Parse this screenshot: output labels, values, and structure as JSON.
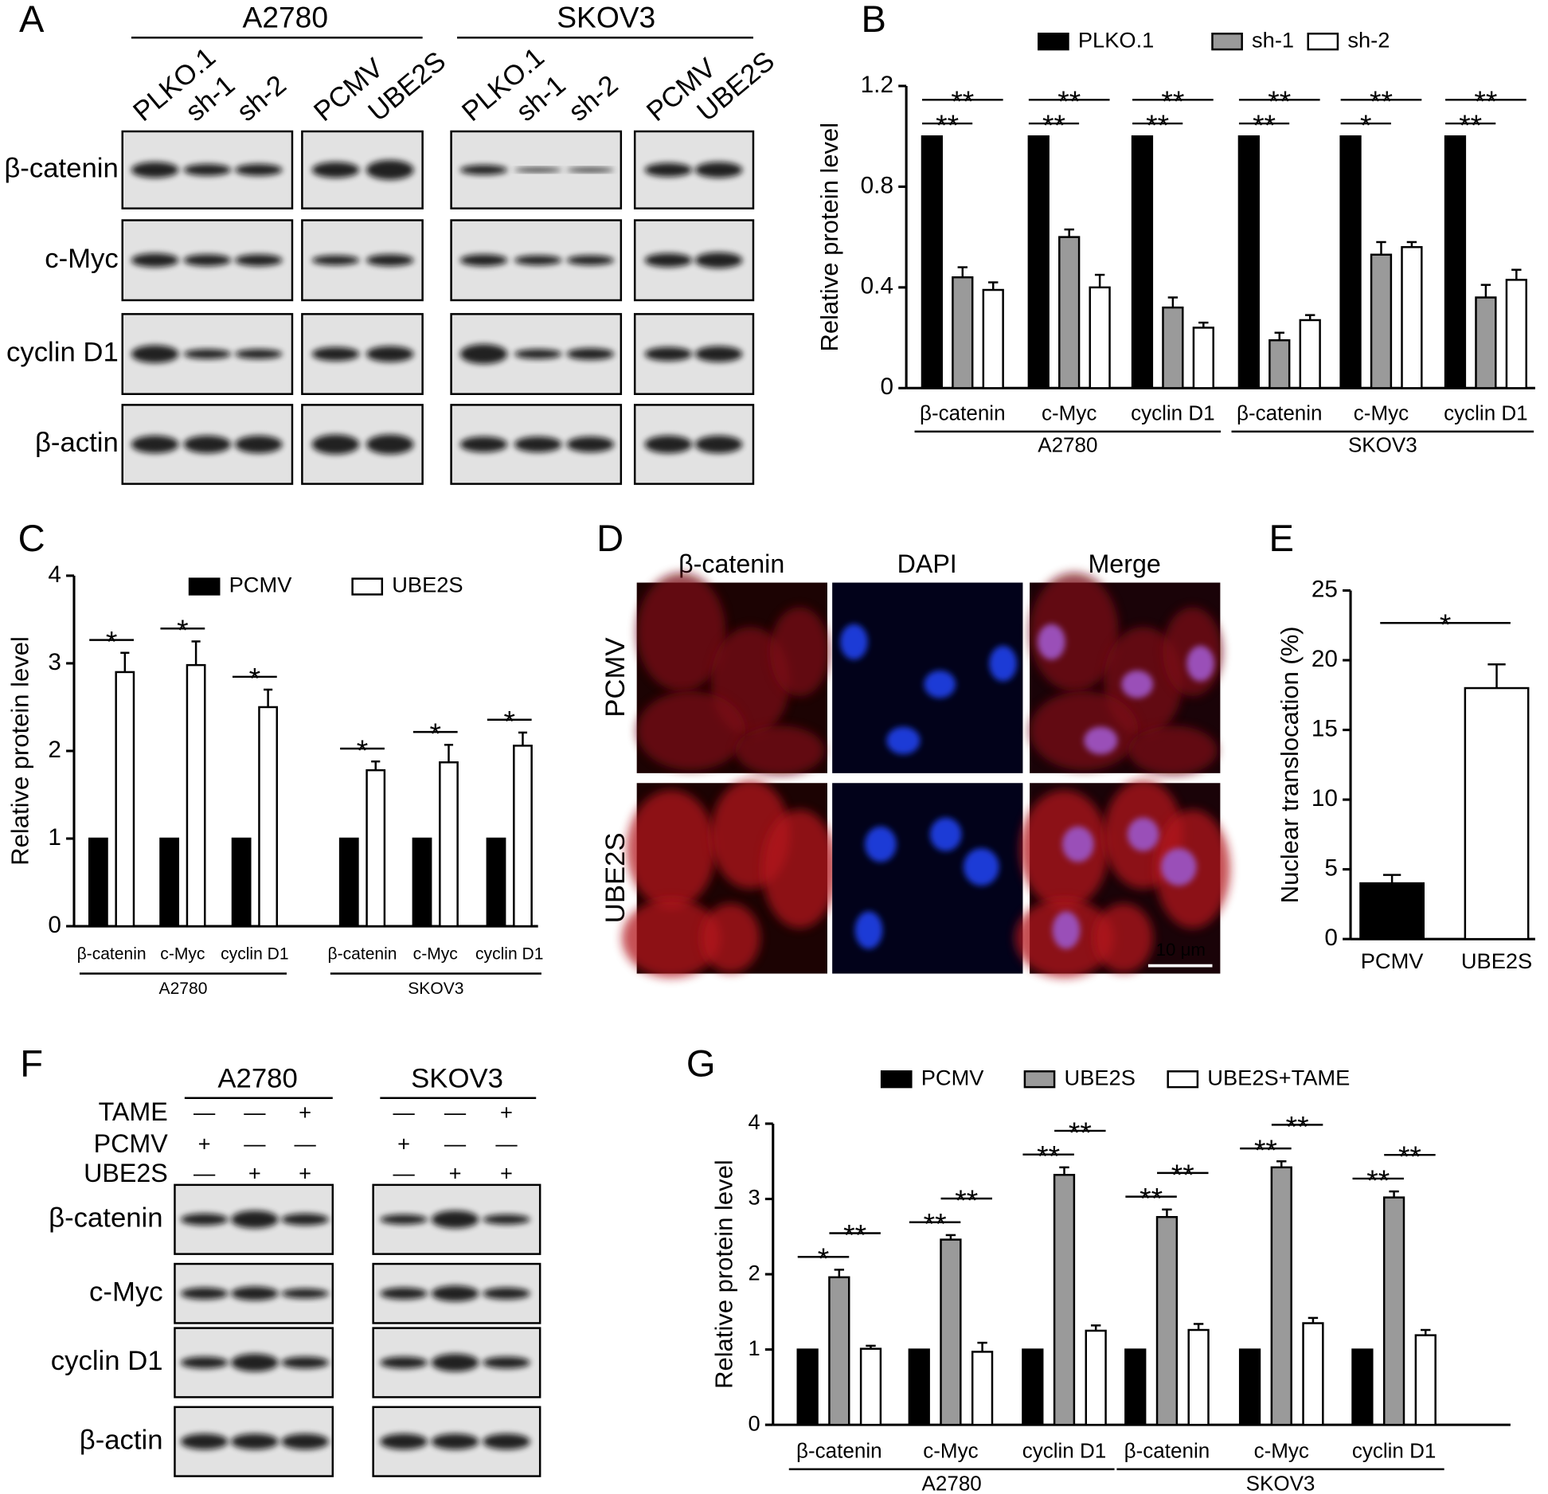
{
  "panel_labels": [
    "A",
    "B",
    "C",
    "D",
    "E",
    "F",
    "G"
  ],
  "blot_a": {
    "cell_lines": [
      "A2780",
      "SKOV3"
    ],
    "lanes": [
      [
        "PLKO.1",
        "sh-1",
        "sh-2",
        "PCMV",
        "UBE2S"
      ],
      [
        "PLKO.1",
        "sh-1",
        "sh-2",
        "PCMV",
        "UBE2S"
      ]
    ],
    "proteins": [
      "β-catenin",
      "c-Myc",
      "cyclin D1",
      "β-actin"
    ]
  },
  "images_d": {
    "columns": [
      "β-catenin",
      "DAPI",
      "Merge"
    ],
    "rows": [
      "PCMV",
      "UBE2S"
    ],
    "scale_bar": "10 μm"
  },
  "blot_f": {
    "cell_lines": [
      "A2780",
      "SKOV3"
    ],
    "treatments": [
      {
        "name": "TAME",
        "signs": [
          "—",
          "—",
          "+"
        ]
      },
      {
        "name": "PCMV",
        "signs": [
          "+",
          "—",
          "—"
        ]
      },
      {
        "name": "UBE2S",
        "signs": [
          "—",
          "+",
          "+"
        ]
      }
    ],
    "proteins": [
      "β-catenin",
      "c-Myc",
      "cyclin D1",
      "β-actin"
    ]
  },
  "chart_data": [
    {
      "type": "bar",
      "ylabel": "Relative protein level",
      "ylim": [
        0,
        1.2
      ],
      "yticks": [
        0,
        0.4,
        0.8,
        1.2
      ],
      "categories": [
        "β-catenin",
        "c-Myc",
        "cyclin D1",
        "β-catenin",
        "c-Myc",
        "cyclin D1"
      ],
      "groups": [
        "A2780",
        "SKOV3"
      ],
      "series": [
        {
          "name": "PLKO.1",
          "color": "#000000",
          "values": [
            1,
            1,
            1,
            1,
            1,
            1
          ]
        },
        {
          "name": "sh-1",
          "color": "#9a9a9a",
          "values": [
            0.44,
            0.6,
            0.32,
            0.19,
            0.53,
            0.36
          ],
          "errors": [
            0.04,
            0.03,
            0.04,
            0.03,
            0.05,
            0.05
          ]
        },
        {
          "name": "sh-2",
          "color": "#ffffff",
          "values": [
            0.39,
            0.4,
            0.24,
            0.27,
            0.56,
            0.43
          ],
          "errors": [
            0.03,
            0.05,
            0.02,
            0.02,
            0.02,
            0.04
          ]
        }
      ],
      "annotations": [
        [
          "**",
          "**"
        ],
        [
          "**",
          "**"
        ],
        [
          "**",
          "**"
        ],
        [
          "**",
          "**"
        ],
        [
          "*",
          "**"
        ],
        [
          "**",
          "**"
        ]
      ]
    },
    {
      "type": "bar",
      "ylabel": "Relative protein level",
      "ylim": [
        0,
        4
      ],
      "yticks": [
        0,
        1,
        2,
        3,
        4
      ],
      "categories": [
        "β-catenin",
        "c-Myc",
        "cyclin D1",
        "β-catenin",
        "c-Myc",
        "cyclin D1"
      ],
      "groups": [
        "A2780",
        "SKOV3"
      ],
      "series": [
        {
          "name": "PCMV",
          "color": "#000000",
          "values": [
            1,
            1,
            1,
            1,
            1,
            1
          ]
        },
        {
          "name": "UBE2S",
          "color": "#ffffff",
          "values": [
            2.9,
            2.98,
            2.5,
            1.78,
            1.87,
            2.06
          ],
          "errors": [
            0.22,
            0.27,
            0.2,
            0.1,
            0.2,
            0.15
          ]
        }
      ],
      "annotations": [
        [
          "*"
        ],
        [
          "*"
        ],
        [
          "*"
        ],
        [
          "*"
        ],
        [
          "*"
        ],
        [
          "*"
        ]
      ]
    },
    {
      "type": "bar",
      "ylabel": "Nuclear translocation (%)",
      "ylim": [
        0,
        25
      ],
      "yticks": [
        0,
        5,
        10,
        15,
        20,
        25
      ],
      "categories": [
        "PCMV",
        "UBE2S"
      ],
      "values": [
        4,
        18
      ],
      "errors": [
        0.6,
        1.7
      ],
      "colors": [
        "#000000",
        "#ffffff"
      ],
      "annotations": [
        "*"
      ]
    },
    {
      "type": "bar",
      "ylabel": "Relative protein level",
      "ylim": [
        0,
        4
      ],
      "yticks": [
        0,
        1,
        2,
        3,
        4
      ],
      "categories": [
        "β-catenin",
        "c-Myc",
        "cyclin D1",
        "β-catenin",
        "c-Myc",
        "cyclin D1"
      ],
      "groups": [
        "A2780",
        "SKOV3"
      ],
      "series": [
        {
          "name": "PCMV",
          "color": "#000000",
          "values": [
            1,
            1,
            1,
            1,
            1,
            1
          ]
        },
        {
          "name": "UBE2S",
          "color": "#9a9a9a",
          "values": [
            1.96,
            2.46,
            3.32,
            2.76,
            3.42,
            3.02
          ],
          "errors": [
            0.1,
            0.06,
            0.1,
            0.1,
            0.08,
            0.08
          ]
        },
        {
          "name": "UBE2S+TAME",
          "color": "#ffffff",
          "values": [
            1.01,
            0.97,
            1.25,
            1.26,
            1.35,
            1.19
          ],
          "errors": [
            0.04,
            0.12,
            0.07,
            0.08,
            0.07,
            0.07
          ]
        }
      ],
      "annotations": [
        [
          "*",
          "**"
        ],
        [
          "**",
          "**"
        ],
        [
          "**",
          "**"
        ],
        [
          "**",
          "**"
        ],
        [
          "**",
          "**"
        ],
        [
          "**",
          "**"
        ]
      ]
    }
  ]
}
